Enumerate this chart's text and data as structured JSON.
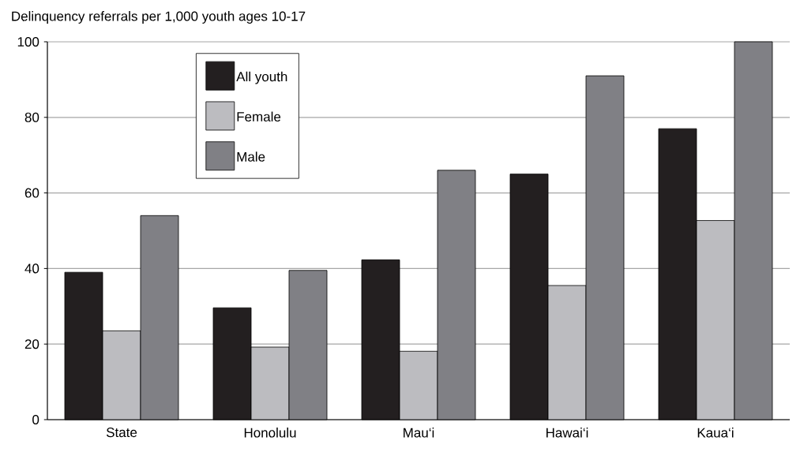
{
  "chart_data": {
    "type": "bar",
    "ylabel": "Delinquency referrals per 1,000 youth ages 10-17",
    "categories": [
      "State",
      "Honolulu",
      "Mau‘i",
      "Hawai‘i",
      "Kaua‘i"
    ],
    "series": [
      {
        "name": "All youth",
        "color": "#231f20",
        "values": [
          39,
          29.6,
          42.3,
          65,
          77
        ]
      },
      {
        "name": "Female",
        "color": "#bcbcc0",
        "values": [
          23.5,
          19.2,
          18.1,
          35.5,
          52.7
        ]
      },
      {
        "name": "Male",
        "color": "#808085",
        "values": [
          54,
          39.5,
          66,
          91,
          100
        ]
      }
    ],
    "ylim": [
      0,
      100
    ],
    "yticks": [
      0,
      20,
      40,
      60,
      80,
      100
    ],
    "grid": "y",
    "legend": "top left"
  }
}
